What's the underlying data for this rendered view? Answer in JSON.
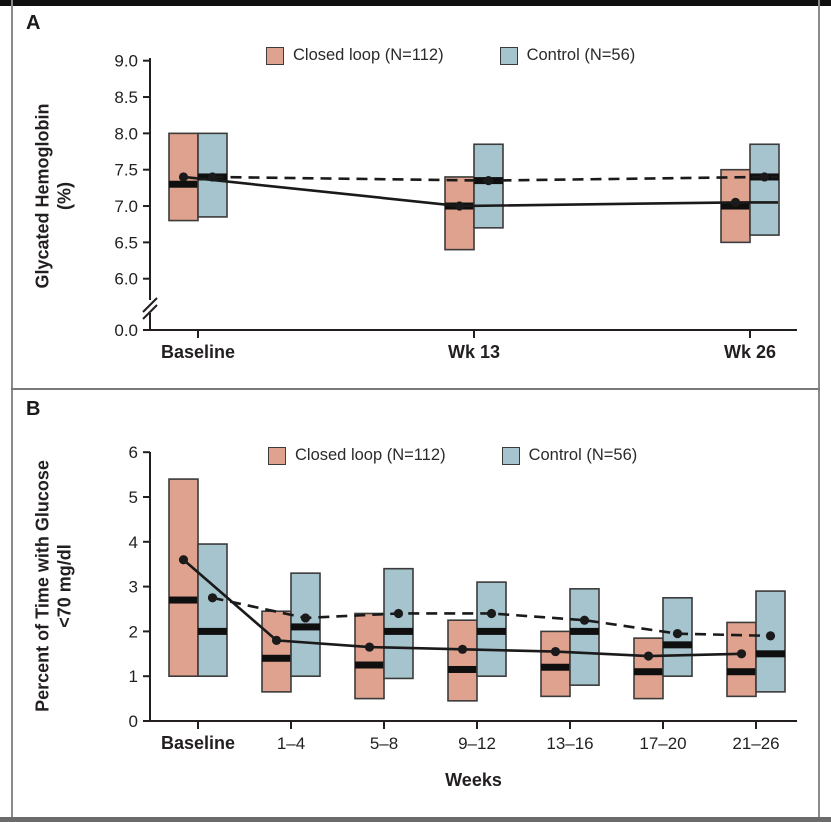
{
  "figure": {
    "panel_a_label": "A",
    "panel_b_label": "B",
    "panel_b_xlabel": "Weeks",
    "colors": {
      "closed_loop_fill": "#dfa28e",
      "control_fill": "#a6c4ce",
      "box_border": "#3b3b3b",
      "median": "#0f0f0f",
      "line": "#1a1a1a",
      "axis": "#231f20"
    }
  },
  "chart_data": [
    {
      "type": "box",
      "panel": "A",
      "ylabel": "Glycated Hemoglobin (%)",
      "ylabel_lines": [
        "Glycated Hemoglobin",
        "(%)"
      ],
      "xlabel": "",
      "ylim": [
        0,
        9
      ],
      "axis_break": true,
      "grid": false,
      "legend_position": "top",
      "categories": [
        "Baseline",
        "Wk 13",
        "Wk 26"
      ],
      "yticks": [
        {
          "v": 0,
          "label": "0.0"
        },
        {
          "v": 6,
          "label": "6.0"
        },
        {
          "v": 6.5,
          "label": "6.5"
        },
        {
          "v": 7,
          "label": "7.0"
        },
        {
          "v": 7.5,
          "label": "7.5"
        },
        {
          "v": 8,
          "label": "8.0"
        },
        {
          "v": 8.5,
          "label": "8.5"
        },
        {
          "v": 9,
          "label": "9.0"
        }
      ],
      "series": [
        {
          "name": "Closed loop (N=112)",
          "color": "#dfa28e",
          "line_style": "solid",
          "boxes": [
            {
              "q1": 6.8,
              "q3": 8.0,
              "median": 7.3,
              "mean": 7.4
            },
            {
              "q1": 6.4,
              "q3": 7.4,
              "median": 7.0,
              "mean": 7.0
            },
            {
              "q1": 6.5,
              "q3": 7.5,
              "median": 7.0,
              "mean": 7.05
            }
          ]
        },
        {
          "name": "Control (N=56)",
          "color": "#a6c4ce",
          "line_style": "dashed",
          "boxes": [
            {
              "q1": 6.85,
              "q3": 8.0,
              "median": 7.4,
              "mean": 7.4
            },
            {
              "q1": 6.7,
              "q3": 7.85,
              "median": 7.35,
              "mean": 7.35
            },
            {
              "q1": 6.6,
              "q3": 7.85,
              "median": 7.4,
              "mean": 7.4
            }
          ]
        }
      ]
    },
    {
      "type": "box",
      "panel": "B",
      "ylabel": "Percent of Time with Glucose <70 mg/dl",
      "ylabel_lines": [
        "Percent of Time with Glucose",
        "<70 mg/dl"
      ],
      "xlabel": "Weeks",
      "ylim": [
        0,
        6
      ],
      "axis_break": false,
      "grid": false,
      "legend_position": "top",
      "categories": [
        "Baseline",
        "1–4",
        "5–8",
        "9–12",
        "13–16",
        "17–20",
        "21–26"
      ],
      "yticks": [
        {
          "v": 0,
          "label": "0"
        },
        {
          "v": 1,
          "label": "1"
        },
        {
          "v": 2,
          "label": "2"
        },
        {
          "v": 3,
          "label": "3"
        },
        {
          "v": 4,
          "label": "4"
        },
        {
          "v": 5,
          "label": "5"
        },
        {
          "v": 6,
          "label": "6"
        }
      ],
      "series": [
        {
          "name": "Closed loop (N=112)",
          "color": "#dfa28e",
          "line_style": "solid",
          "boxes": [
            {
              "q1": 1.0,
              "q3": 5.4,
              "median": 2.7,
              "mean": 3.6
            },
            {
              "q1": 0.65,
              "q3": 2.45,
              "median": 1.4,
              "mean": 1.8
            },
            {
              "q1": 0.5,
              "q3": 2.4,
              "median": 1.25,
              "mean": 1.65
            },
            {
              "q1": 0.45,
              "q3": 2.25,
              "median": 1.15,
              "mean": 1.6
            },
            {
              "q1": 0.55,
              "q3": 2.0,
              "median": 1.2,
              "mean": 1.55
            },
            {
              "q1": 0.5,
              "q3": 1.85,
              "median": 1.1,
              "mean": 1.45
            },
            {
              "q1": 0.55,
              "q3": 2.2,
              "median": 1.1,
              "mean": 1.5
            }
          ]
        },
        {
          "name": "Control (N=56)",
          "color": "#a6c4ce",
          "line_style": "dashed",
          "boxes": [
            {
              "q1": 1.0,
              "q3": 3.95,
              "median": 2.0,
              "mean": 2.75
            },
            {
              "q1": 1.0,
              "q3": 3.3,
              "median": 2.1,
              "mean": 2.3
            },
            {
              "q1": 0.95,
              "q3": 3.4,
              "median": 2.0,
              "mean": 2.4
            },
            {
              "q1": 1.0,
              "q3": 3.1,
              "median": 2.0,
              "mean": 2.4
            },
            {
              "q1": 0.8,
              "q3": 2.95,
              "median": 2.0,
              "mean": 2.25
            },
            {
              "q1": 1.0,
              "q3": 2.75,
              "median": 1.7,
              "mean": 1.95
            },
            {
              "q1": 0.65,
              "q3": 2.9,
              "median": 1.5,
              "mean": 1.9
            }
          ]
        }
      ]
    }
  ]
}
